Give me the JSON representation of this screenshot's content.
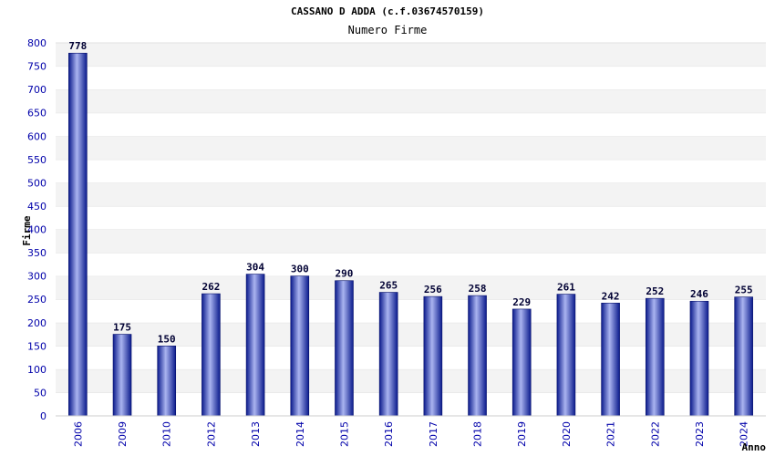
{
  "chart_data": {
    "type": "bar",
    "title": "CASSANO D ADDA (c.f.03674570159)",
    "subtitle": "Numero Firme",
    "xlabel": "Anno",
    "ylabel": "Firme",
    "ylim": [
      0,
      800
    ],
    "yticks": [
      0,
      50,
      100,
      150,
      200,
      250,
      300,
      350,
      400,
      450,
      500,
      550,
      600,
      650,
      700,
      750,
      800
    ],
    "grid": true,
    "categories": [
      "2006",
      "2009",
      "2010",
      "2012",
      "2013",
      "2014",
      "2015",
      "2016",
      "2017",
      "2018",
      "2019",
      "2020",
      "2021",
      "2022",
      "2023",
      "2024"
    ],
    "values": [
      778,
      175,
      150,
      262,
      304,
      300,
      290,
      265,
      256,
      258,
      229,
      261,
      242,
      252,
      246,
      255
    ],
    "colors": {
      "bar_dark": "#0a1a8c",
      "bar_light": "#aab4f0",
      "band": "#f3f3f3",
      "axis_text": "#0000aa"
    }
  }
}
